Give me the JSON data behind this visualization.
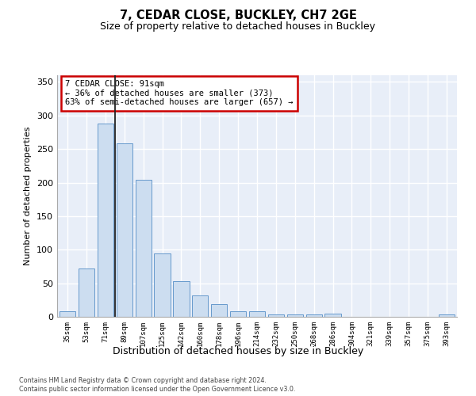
{
  "title1": "7, CEDAR CLOSE, BUCKLEY, CH7 2GE",
  "title2": "Size of property relative to detached houses in Buckley",
  "xlabel": "Distribution of detached houses by size in Buckley",
  "ylabel": "Number of detached properties",
  "categories": [
    "35sqm",
    "53sqm",
    "71sqm",
    "89sqm",
    "107sqm",
    "125sqm",
    "142sqm",
    "160sqm",
    "178sqm",
    "196sqm",
    "214sqm",
    "232sqm",
    "250sqm",
    "268sqm",
    "286sqm",
    "304sqm",
    "321sqm",
    "339sqm",
    "357sqm",
    "375sqm",
    "393sqm"
  ],
  "values": [
    8,
    72,
    288,
    259,
    204,
    95,
    53,
    32,
    19,
    8,
    8,
    4,
    4,
    4,
    5,
    0,
    0,
    0,
    0,
    0,
    3
  ],
  "bar_color": "#ccddf0",
  "bar_edge_color": "#6699cc",
  "annotation_text": "7 CEDAR CLOSE: 91sqm\n← 36% of detached houses are smaller (373)\n63% of semi-detached houses are larger (657) →",
  "annotation_box_color": "#ffffff",
  "annotation_box_edge_color": "#cc0000",
  "vline_x": 2.5,
  "vline_color": "#222222",
  "ylim": [
    0,
    360
  ],
  "yticks": [
    0,
    50,
    100,
    150,
    200,
    250,
    300,
    350
  ],
  "plot_bg_color": "#e8eef8",
  "grid_color": "#ffffff",
  "footer1": "Contains HM Land Registry data © Crown copyright and database right 2024.",
  "footer2": "Contains public sector information licensed under the Open Government Licence v3.0."
}
